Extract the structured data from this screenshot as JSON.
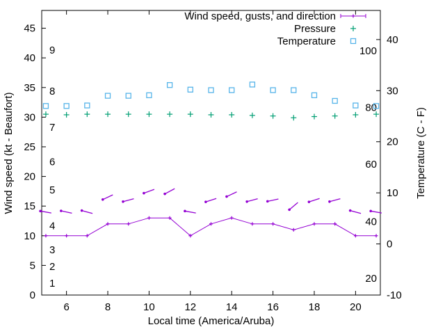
{
  "chart_data": {
    "type": "line",
    "title": "",
    "axes": {
      "x": {
        "label": "Local time (America/Aruba)",
        "ticks": [
          6,
          8,
          10,
          12,
          14,
          16,
          18,
          20
        ],
        "range": [
          4.8,
          21.2
        ]
      },
      "y_left": {
        "label": "Wind speed (kt - Beaufort)",
        "ticks": [
          0,
          5,
          10,
          15,
          20,
          25,
          30,
          35,
          40,
          45
        ],
        "range": [
          0,
          48
        ],
        "beaufort": [
          {
            "label": "1",
            "kt": 2
          },
          {
            "label": "2",
            "kt": 4.8
          },
          {
            "label": "3",
            "kt": 7.6
          },
          {
            "label": "4",
            "kt": 11.7
          },
          {
            "label": "5",
            "kt": 17.7
          },
          {
            "label": "6",
            "kt": 22.5
          },
          {
            "label": "7",
            "kt": 28.3
          },
          {
            "label": "8",
            "kt": 34.4
          },
          {
            "label": "9",
            "kt": 41.3
          }
        ]
      },
      "y_right": {
        "label": "Temperature (C - F)",
        "ticks": [
          -10,
          0,
          10,
          20,
          30,
          40
        ],
        "range": [
          -10,
          45.7
        ],
        "fahrenheit": [
          {
            "label": "20",
            "c": -6.7
          },
          {
            "label": "40",
            "c": 4.4
          },
          {
            "label": "60",
            "c": 15.6
          },
          {
            "label": "80",
            "c": 26.7
          },
          {
            "label": "100",
            "c": 37.8
          }
        ]
      }
    },
    "hours": [
      5,
      6,
      7,
      8,
      9,
      10,
      11,
      12,
      13,
      14,
      15,
      16,
      17,
      18,
      19,
      20,
      21
    ],
    "series": {
      "wind_speed": {
        "name": "Wind speed",
        "color": "#9400d3",
        "values": [
          10,
          10,
          10,
          12,
          12,
          13,
          13,
          10,
          12,
          13,
          12,
          12,
          11,
          12,
          12,
          10,
          10
        ]
      },
      "gusts": {
        "name": "Gusts and direction",
        "color": "#9400d3",
        "values": [
          14,
          14,
          14,
          16.5,
          16,
          17.5,
          17.5,
          14,
          16,
          17,
          16,
          16,
          15,
          16,
          16,
          14,
          14
        ],
        "angles": [
          10,
          12,
          15,
          -25,
          -15,
          -20,
          -28,
          10,
          -18,
          -25,
          -15,
          -12,
          -40,
          -18,
          -15,
          15,
          10
        ]
      },
      "pressure": {
        "name": "Pressure",
        "color": "#009e73",
        "values": [
          30.5,
          30.4,
          30.5,
          30.5,
          30.5,
          30.5,
          30.5,
          30.5,
          30.4,
          30.4,
          30.3,
          30.2,
          29.9,
          30.1,
          30.2,
          30.4,
          30.5
        ]
      },
      "temperature": {
        "name": "Temperature",
        "axis": "right",
        "color": "#56b4e9",
        "values": [
          27,
          27,
          27.1,
          29,
          29,
          29.1,
          31.1,
          30.2,
          30.1,
          30.1,
          31.2,
          30.1,
          30.1,
          29.1,
          28,
          27.1,
          27
        ]
      }
    },
    "legend": [
      {
        "label": "Wind speed, gusts, and direction",
        "color": "#9400d3",
        "sample": "line-point"
      },
      {
        "label": "Pressure",
        "color": "#009e73",
        "sample": "plus"
      },
      {
        "label": "Temperature",
        "color": "#56b4e9",
        "sample": "square"
      }
    ]
  }
}
